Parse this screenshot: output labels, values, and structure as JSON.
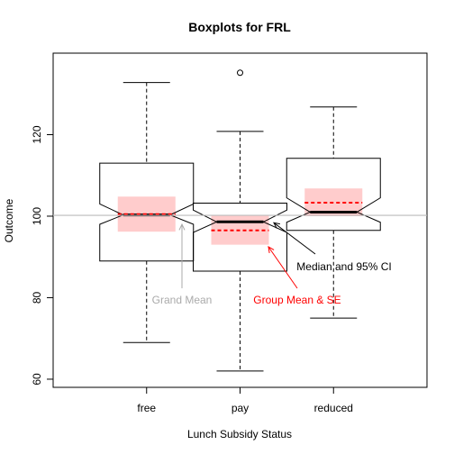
{
  "chart_data": {
    "type": "boxplot",
    "title": "Boxplots for FRL",
    "xlabel": "Lunch Subsidy Status",
    "ylabel": "Outcome",
    "categories": [
      "free",
      "pay",
      "reduced"
    ],
    "ylim": [
      58,
      140
    ],
    "yticks": [
      60,
      80,
      100,
      120
    ],
    "notch": true,
    "grand_mean": 100.2,
    "boxes": [
      {
        "name": "free",
        "whisker_low": 69,
        "q1": 89,
        "median": 100.3,
        "q3": 113,
        "whisker_high": 132.8,
        "notch_low": 98.0,
        "notch_high": 103.0,
        "mean": 100.5,
        "se_low": 96.2,
        "se_high": 104.8,
        "outliers": []
      },
      {
        "name": "pay",
        "whisker_low": 62,
        "q1": 86.5,
        "median": 98.6,
        "q3": 103.2,
        "whisker_high": 120.8,
        "notch_low": 96.0,
        "notch_high": 101.5,
        "mean": 96.5,
        "se_low": 93.0,
        "se_high": 100.2,
        "outliers": [
          135.2
        ]
      },
      {
        "name": "reduced",
        "whisker_low": 75,
        "q1": 96.5,
        "median": 101.0,
        "q3": 114.2,
        "whisker_high": 126.8,
        "notch_low": 98.5,
        "notch_high": 104.5,
        "mean": 103.3,
        "se_low": 100.0,
        "se_high": 106.8,
        "outliers": []
      }
    ],
    "annotations": [
      {
        "text": "Grand Mean",
        "color": "#aaaaaa"
      },
      {
        "text": "Median and 95% CI",
        "color": "#000000"
      },
      {
        "text": "Group Mean & SE",
        "color": "#ff0000"
      }
    ],
    "colors": {
      "se_band": "#ffcccc",
      "mean_line": "#ff0000",
      "grand_mean_line": "#bbbbbb",
      "grand_mean_label": "#aaaaaa",
      "group_mean_label": "#ff0000",
      "box": "#000000"
    }
  }
}
